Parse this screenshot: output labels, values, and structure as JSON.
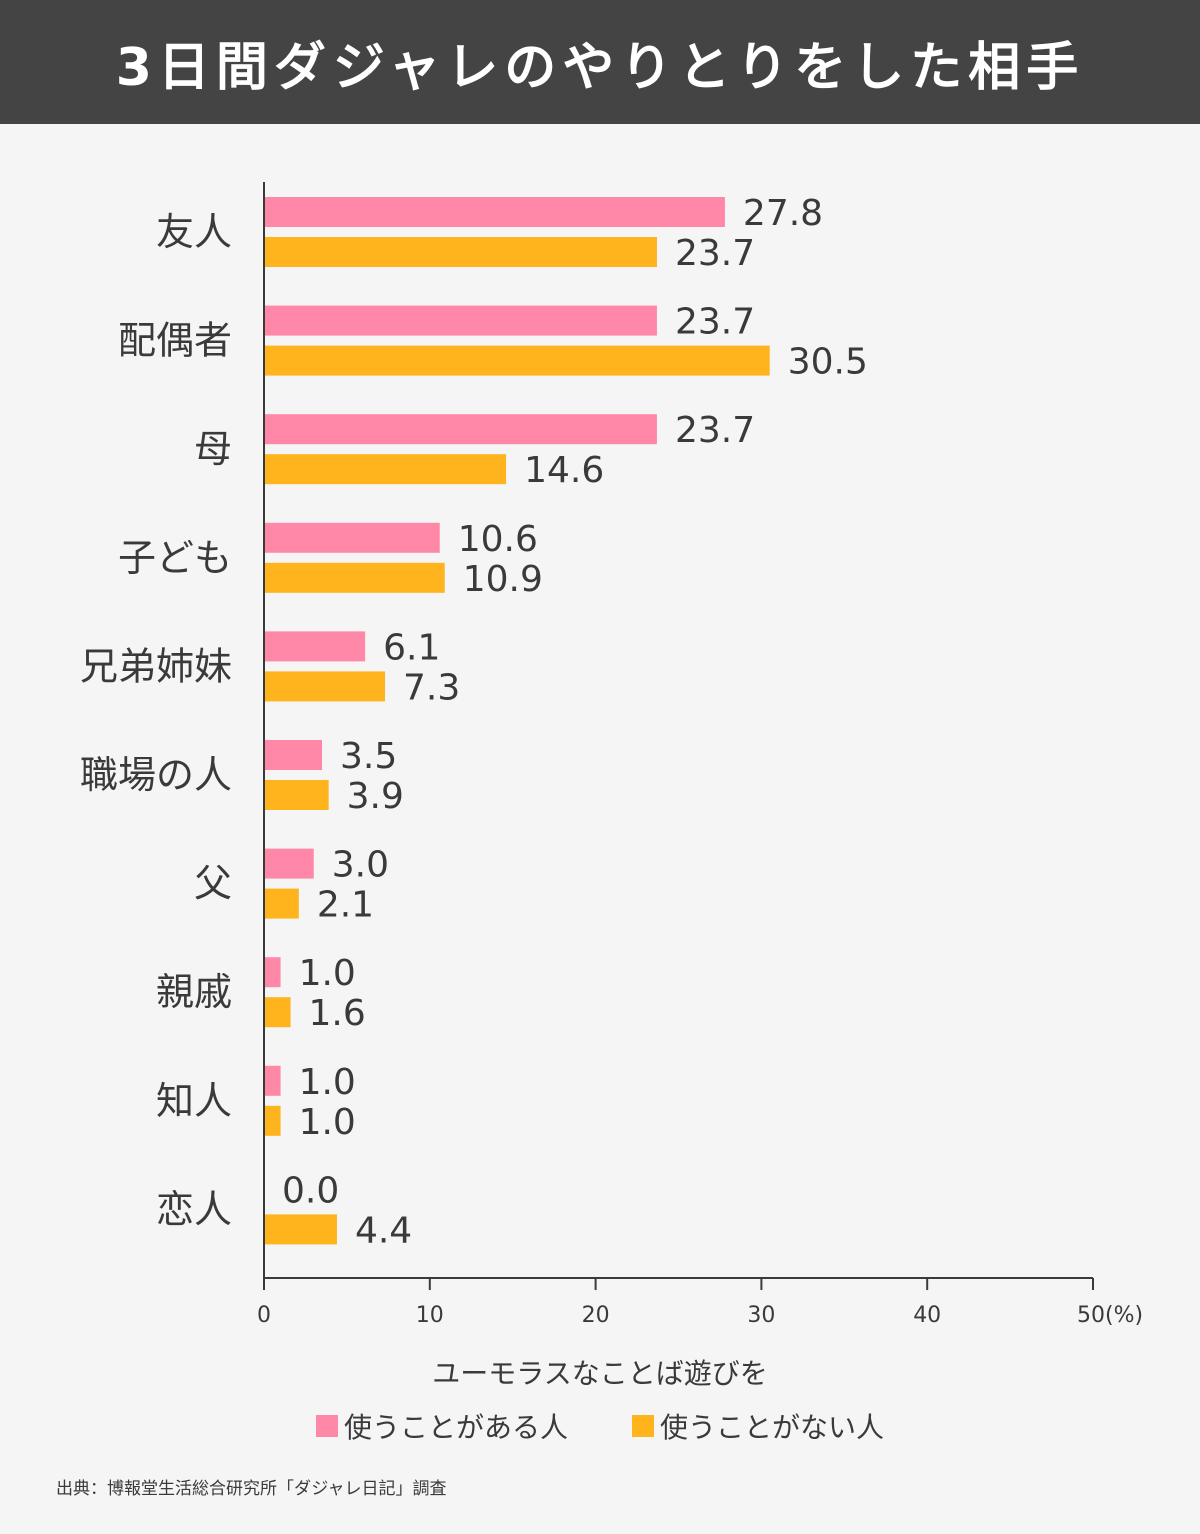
{
  "header": {
    "title": "3日間ダジャレのやりとりをした相手"
  },
  "colors": {
    "header_bg": "#444444",
    "uses": "#ff88a8",
    "not_uses": "#ffb31c"
  },
  "chart_data": {
    "type": "bar",
    "orientation": "horizontal",
    "categories": [
      "友人",
      "配偶者",
      "母",
      "子ども",
      "兄弟姉妹",
      "職場の人",
      "父",
      "親戚",
      "知人",
      "恋人"
    ],
    "series": [
      {
        "name": "使うことがある人",
        "values": [
          27.8,
          23.7,
          23.7,
          10.6,
          6.1,
          3.5,
          3.0,
          1.0,
          1.0,
          0.0
        ],
        "labels": [
          "27.8",
          "23.7",
          "23.7",
          "10.6",
          "6.1",
          "3.5",
          "3.0",
          "1.0",
          "1.0",
          "0.0"
        ]
      },
      {
        "name": "使うことがない人",
        "values": [
          23.7,
          30.5,
          14.6,
          10.9,
          7.3,
          3.9,
          2.1,
          1.6,
          1.0,
          4.4
        ],
        "labels": [
          "23.7",
          "30.5",
          "14.6",
          "10.9",
          "7.3",
          "3.9",
          "2.1",
          "1.6",
          "1.0",
          "4.4"
        ]
      }
    ],
    "xlim": [
      0,
      50
    ],
    "ticks": [
      "0",
      "10",
      "20",
      "30",
      "40",
      "50(%)"
    ],
    "tick_values": [
      0,
      10,
      20,
      30,
      40,
      50
    ],
    "legend_title": "ユーモラスなことば遊びを",
    "legend": [
      "使うことがある人",
      "使うことがない人"
    ]
  },
  "source": "出典：博報堂生活総合研究所「ダジャレ日記」調査"
}
